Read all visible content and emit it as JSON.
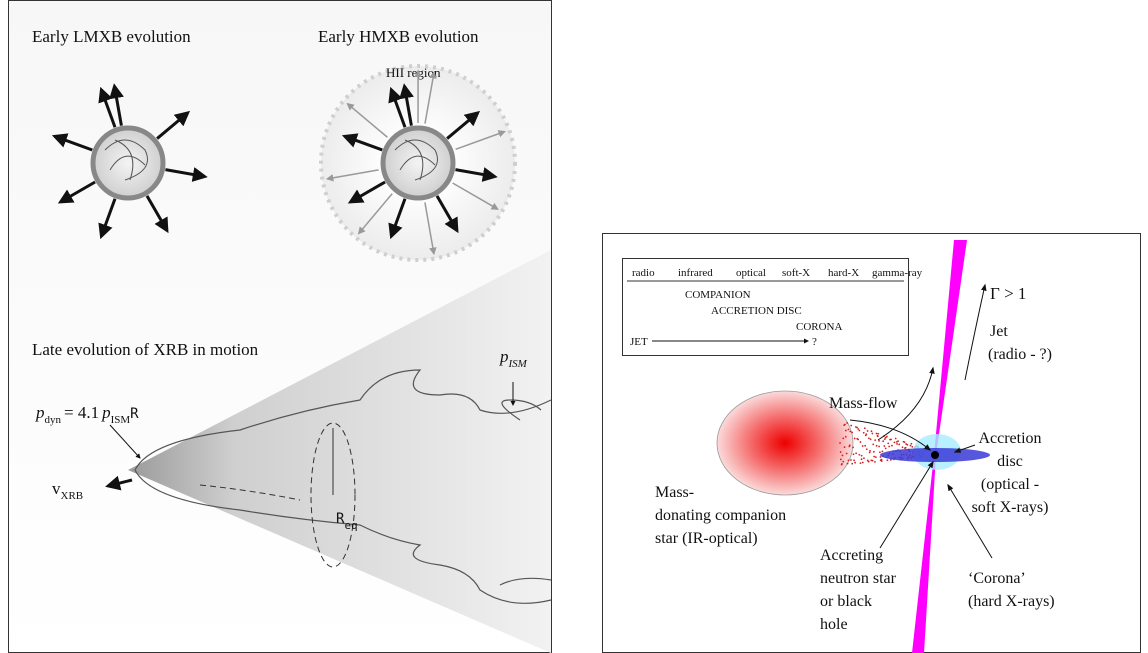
{
  "left_panel": {
    "lmxb_title": "Early LMXB evolution",
    "hmxb_title": "Early HMXB evolution",
    "hii_label": "HII region",
    "late_title": "Late evolution of XRB in motion",
    "p_ism_label": {
      "symbol": "p",
      "subscript": "ISM"
    },
    "p_dyn_label": {
      "symbol": "p",
      "subscript": "dyn",
      "equals": "= 4.1",
      "factor_symbol": "p",
      "factor_subscript": "ISM",
      "radius": "R"
    },
    "v_xrb_label": {
      "symbol": "v",
      "subscript": "XRB"
    },
    "r_eq_label": {
      "symbol": "R",
      "subscript": "eq"
    }
  },
  "right_panel": {
    "spectrum_table": {
      "header": [
        "radio",
        "infrared",
        "optical",
        "soft-X",
        "hard-X",
        "gamma-ray"
      ],
      "rows": [
        "COMPANION",
        "ACCRETION DISC",
        "CORONA"
      ],
      "jet_start": "JET",
      "jet_end": "?"
    },
    "lorentz_label": "Γ > 1",
    "jet_label": [
      "Jet",
      "(radio - ?)"
    ],
    "mass_flow_label": "Mass-flow",
    "disc_label": [
      "Accretion",
      "disc",
      "(optical -",
      "soft X-rays)"
    ],
    "companion_label": [
      "Mass-",
      "donating companion",
      "star (IR-optical)"
    ],
    "compact_label": [
      "Accreting",
      "neutron star",
      "or black",
      "hole"
    ],
    "corona_label": [
      "‘Corona’",
      "(hard X-rays)"
    ]
  }
}
